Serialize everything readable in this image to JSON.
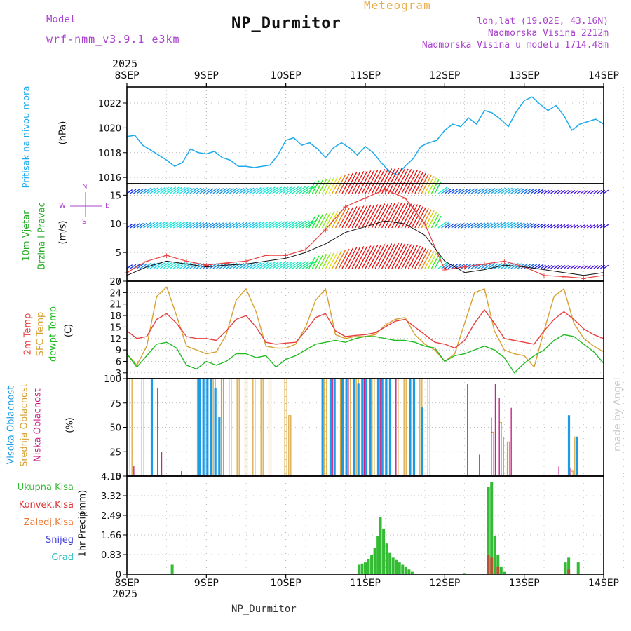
{
  "header": {
    "model_label": "Model",
    "model_name": "wrf-nmm_v3.9.1 e3km",
    "title": "NP_Durmitor",
    "meteogram_label": "Meteogram",
    "coords": "lon,lat (19.02E, 43.16N)",
    "elevation": "Nadmorska Visina 2212m",
    "model_elevation": "Nadmorska Visina u modelu 1714.48m",
    "footer_station": "NP_Durmitor",
    "credit": "made by Angel"
  },
  "time_axis": {
    "year": "2025",
    "days": [
      "8SEP",
      "9SEP",
      "10SEP",
      "11SEP",
      "12SEP",
      "13SEP",
      "14SEP"
    ]
  },
  "colors": {
    "pressure": "#1eaaee",
    "temp2m": "#e84040",
    "sfc": "#d8a030",
    "dewpt": "#22bb22",
    "high_cloud": "#1e9be6",
    "mid_cloud": "#d8a030",
    "low_cloud": "#cc2288",
    "total_precip": "#33bb33",
    "conv_precip": "#dd3333",
    "frozen_precip": "#ee7733",
    "snow": "#4040dd",
    "hail": "#22bbbb",
    "label_purple": "#9933cc"
  },
  "chart_data": [
    {
      "name": "pressure",
      "type": "line",
      "ylabel": "Pritisak na nivou mora",
      "unit": "(hPa)",
      "ylim": [
        1015.5,
        1023.3
      ],
      "yticks": [
        1016,
        1018,
        1020,
        1022
      ],
      "x_days": [
        0.0,
        0.1,
        0.2,
        0.3,
        0.4,
        0.5,
        0.6,
        0.7,
        0.8,
        0.9,
        1.0,
        1.1,
        1.2,
        1.3,
        1.4,
        1.5,
        1.6,
        1.7,
        1.8,
        1.9,
        2.0,
        2.1,
        2.2,
        2.3,
        2.4,
        2.5,
        2.6,
        2.7,
        2.8,
        2.9,
        3.0,
        3.1,
        3.2,
        3.3,
        3.4,
        3.5,
        3.6,
        3.7,
        3.8,
        3.9,
        4.0,
        4.1,
        4.2,
        4.3,
        4.4,
        4.5,
        4.6,
        4.7,
        4.8,
        4.9,
        5.0,
        5.1,
        5.2,
        5.3,
        5.4,
        5.5,
        5.6,
        5.7,
        5.8,
        5.9,
        6.0
      ],
      "values": [
        1019.3,
        1019.4,
        1018.6,
        1018.2,
        1017.8,
        1017.4,
        1016.9,
        1017.2,
        1018.3,
        1018.0,
        1017.9,
        1018.1,
        1017.6,
        1017.4,
        1016.9,
        1016.9,
        1016.8,
        1016.9,
        1017.0,
        1017.8,
        1019.0,
        1019.2,
        1018.6,
        1018.8,
        1018.3,
        1017.6,
        1018.4,
        1018.8,
        1018.4,
        1017.8,
        1018.5,
        1018.0,
        1017.2,
        1016.5,
        1016.2,
        1016.9,
        1017.5,
        1018.5,
        1018.8,
        1019.0,
        1019.8,
        1020.3,
        1020.1,
        1020.8,
        1020.3,
        1021.4,
        1021.2,
        1020.7,
        1020.1,
        1021.3,
        1022.2,
        1022.5,
        1021.9,
        1021.4,
        1021.8,
        1021.0,
        1019.8,
        1020.3,
        1020.5,
        1020.7,
        1020.3
      ]
    },
    {
      "name": "wind",
      "type": "line",
      "ylabel_1": "10m Vjetar",
      "ylabel_2": "Brzina i Pravac",
      "unit": "(m/s)",
      "compass_n": "N",
      "compass_s": "S",
      "compass_w": "W",
      "compass_e": "E",
      "ylim": [
        0,
        17
      ],
      "yticks": [
        0,
        5,
        10,
        15
      ],
      "x_days": [
        0.0,
        0.25,
        0.5,
        0.75,
        1.0,
        1.25,
        1.5,
        1.75,
        2.0,
        2.25,
        2.5,
        2.75,
        3.0,
        3.25,
        3.5,
        3.75,
        4.0,
        4.25,
        4.5,
        4.75,
        5.0,
        5.25,
        5.5,
        5.75,
        6.0
      ],
      "speed_mean": [
        1.0,
        2.5,
        3.5,
        3.0,
        2.5,
        2.8,
        3.0,
        3.5,
        4.0,
        5.0,
        6.5,
        8.5,
        9.5,
        10.5,
        10.0,
        8.0,
        3.5,
        1.5,
        2.0,
        2.8,
        2.5,
        2.0,
        1.5,
        1.0,
        1.5
      ],
      "speed_gust": [
        1.5,
        3.5,
        4.5,
        3.5,
        2.8,
        3.2,
        3.5,
        4.5,
        4.5,
        5.5,
        9.0,
        13.0,
        14.5,
        16.0,
        14.5,
        10.0,
        2.0,
        2.5,
        3.0,
        3.5,
        2.5,
        1.0,
        0.8,
        0.5,
        1.0
      ]
    },
    {
      "name": "temperature",
      "type": "line",
      "ylabel_1": "2m Temp",
      "ylabel_2": "SFC Temp",
      "ylabel_3": "dewpt Temp",
      "unit": "(C)",
      "ylim": [
        1.5,
        27
      ],
      "yticks": [
        3,
        6,
        9,
        12,
        15,
        18,
        21,
        24,
        27
      ],
      "x_days": [
        0.0,
        0.125,
        0.25,
        0.375,
        0.5,
        0.625,
        0.75,
        0.875,
        1.0,
        1.125,
        1.25,
        1.375,
        1.5,
        1.625,
        1.75,
        1.875,
        2.0,
        2.125,
        2.25,
        2.375,
        2.5,
        2.625,
        2.75,
        2.875,
        3.0,
        3.125,
        3.25,
        3.375,
        3.5,
        3.625,
        3.75,
        3.875,
        4.0,
        4.125,
        4.25,
        4.375,
        4.5,
        4.625,
        4.75,
        4.875,
        5.0,
        5.125,
        5.25,
        5.375,
        5.5,
        5.625,
        5.75,
        5.875,
        6.0
      ],
      "t2m": [
        14.0,
        12.0,
        12.5,
        17.0,
        18.5,
        16.0,
        12.5,
        12.0,
        12.0,
        11.5,
        14.0,
        17.0,
        18.0,
        15.0,
        11.0,
        10.5,
        10.8,
        11.0,
        14.0,
        17.5,
        18.5,
        14.0,
        12.5,
        12.8,
        13.0,
        13.5,
        15.0,
        16.5,
        17.0,
        15.0,
        13.0,
        11.0,
        10.5,
        9.5,
        11.5,
        16.0,
        19.5,
        16.0,
        12.0,
        11.5,
        11.0,
        10.5,
        14.0,
        17.0,
        19.0,
        17.0,
        14.5,
        13.0,
        12.0
      ],
      "sfc": [
        8.0,
        5.0,
        10.0,
        23.0,
        25.5,
        18.0,
        10.0,
        9.0,
        8.0,
        8.5,
        13.0,
        22.0,
        25.0,
        19.0,
        10.0,
        9.5,
        9.5,
        10.5,
        15.0,
        22.0,
        25.0,
        13.0,
        12.0,
        12.5,
        12.5,
        13.0,
        15.5,
        17.0,
        17.5,
        13.0,
        10.5,
        9.0,
        6.0,
        8.0,
        16.0,
        24.0,
        25.0,
        14.0,
        9.0,
        8.0,
        7.5,
        4.5,
        14.0,
        23.0,
        25.0,
        16.0,
        12.0,
        10.0,
        8.5
      ],
      "dewpt": [
        8.0,
        4.5,
        7.5,
        10.5,
        11.0,
        9.5,
        5.0,
        4.0,
        6.0,
        5.0,
        6.0,
        8.0,
        8.0,
        7.0,
        7.5,
        4.5,
        6.5,
        7.5,
        9.0,
        10.5,
        11.0,
        11.5,
        11.0,
        12.0,
        12.5,
        12.5,
        12.0,
        11.5,
        11.5,
        11.0,
        10.0,
        9.5,
        6.0,
        7.5,
        8.0,
        9.0,
        10.0,
        9.0,
        7.0,
        3.0,
        5.5,
        7.5,
        9.0,
        11.5,
        13.0,
        12.5,
        10.5,
        8.5,
        5.5
      ]
    },
    {
      "name": "clouds",
      "type": "bar",
      "ylabel_1": "Visoka Oblacnost",
      "ylabel_2": "Srednja Oblacnost",
      "ylabel_3": "Niska Oblacnost",
      "unit": "(%)",
      "ylim": [
        0,
        100
      ],
      "yticks": [
        0,
        25,
        50,
        75,
        100
      ],
      "high": [
        [
          0.3,
          100
        ],
        [
          0.9,
          100
        ],
        [
          0.95,
          100
        ],
        [
          1.0,
          100
        ],
        [
          1.05,
          100
        ],
        [
          1.1,
          90
        ],
        [
          1.15,
          60
        ],
        [
          2.45,
          100
        ],
        [
          2.55,
          100
        ],
        [
          2.6,
          100
        ],
        [
          2.7,
          100
        ],
        [
          2.75,
          100
        ],
        [
          2.85,
          100
        ],
        [
          2.9,
          95
        ],
        [
          2.95,
          100
        ],
        [
          3.0,
          100
        ],
        [
          3.05,
          100
        ],
        [
          3.15,
          100
        ],
        [
          3.2,
          100
        ],
        [
          3.25,
          100
        ],
        [
          3.3,
          100
        ],
        [
          3.55,
          100
        ],
        [
          3.6,
          100
        ],
        [
          3.7,
          70
        ],
        [
          5.55,
          62
        ],
        [
          5.65,
          40
        ]
      ],
      "mid": [
        [
          0.05,
          100
        ],
        [
          0.2,
          100
        ],
        [
          0.9,
          100
        ],
        [
          1.0,
          100
        ],
        [
          1.1,
          100
        ],
        [
          1.2,
          100
        ],
        [
          1.3,
          100
        ],
        [
          1.4,
          100
        ],
        [
          1.5,
          100
        ],
        [
          1.6,
          100
        ],
        [
          1.7,
          100
        ],
        [
          1.8,
          100
        ],
        [
          2.0,
          100
        ],
        [
          2.05,
          62
        ],
        [
          2.5,
          100
        ],
        [
          2.6,
          100
        ],
        [
          2.7,
          100
        ],
        [
          2.8,
          100
        ],
        [
          2.9,
          100
        ],
        [
          3.0,
          100
        ],
        [
          3.1,
          100
        ],
        [
          3.2,
          100
        ],
        [
          3.3,
          100
        ],
        [
          3.4,
          100
        ],
        [
          3.5,
          100
        ],
        [
          3.6,
          100
        ],
        [
          3.7,
          100
        ],
        [
          3.8,
          100
        ],
        [
          4.6,
          45
        ],
        [
          4.7,
          55
        ],
        [
          4.8,
          35
        ],
        [
          5.6,
          5
        ],
        [
          5.65,
          40
        ]
      ],
      "low": [
        [
          0.1,
          10
        ],
        [
          0.4,
          90
        ],
        [
          0.45,
          25
        ],
        [
          0.7,
          5
        ],
        [
          2.6,
          100
        ],
        [
          2.8,
          100
        ],
        [
          3.0,
          100
        ],
        [
          3.2,
          100
        ],
        [
          3.4,
          100
        ],
        [
          4.3,
          95
        ],
        [
          4.45,
          22
        ],
        [
          4.6,
          60
        ],
        [
          4.65,
          95
        ],
        [
          4.7,
          80
        ],
        [
          4.75,
          40
        ],
        [
          4.85,
          70
        ],
        [
          5.45,
          10
        ],
        [
          5.6,
          8
        ]
      ]
    },
    {
      "name": "precip",
      "type": "bar",
      "ylabel_1": "1hr Precip",
      "unit": "(mm)",
      "legend": [
        "Ukupna Kisa",
        "Konvek.Kisa",
        "Zaledj.Kisa",
        "Snijeg",
        "Grad"
      ],
      "ylim": [
        0,
        4.15
      ],
      "yticks": [
        0,
        0.83,
        1.66,
        2.49,
        3.32,
        4.15
      ],
      "ytick_labels": [
        "0",
        "0.83",
        "1.66",
        "2.49",
        "3.32",
        "4.15"
      ],
      "total": [
        [
          0.57,
          0.4
        ],
        [
          2.92,
          0.4
        ],
        [
          2.96,
          0.45
        ],
        [
          3.0,
          0.5
        ],
        [
          3.04,
          0.65
        ],
        [
          3.08,
          0.8
        ],
        [
          3.12,
          1.1
        ],
        [
          3.16,
          1.6
        ],
        [
          3.19,
          2.4
        ],
        [
          3.23,
          1.9
        ],
        [
          3.27,
          1.3
        ],
        [
          3.31,
          0.9
        ],
        [
          3.35,
          0.7
        ],
        [
          3.39,
          0.6
        ],
        [
          3.43,
          0.5
        ],
        [
          3.47,
          0.4
        ],
        [
          3.51,
          0.3
        ],
        [
          3.55,
          0.2
        ],
        [
          3.59,
          0.1
        ],
        [
          4.25,
          0.05
        ],
        [
          4.55,
          3.7
        ],
        [
          4.59,
          3.9
        ],
        [
          4.63,
          1.6
        ],
        [
          4.67,
          0.8
        ],
        [
          4.71,
          0.3
        ],
        [
          4.75,
          0.1
        ],
        [
          5.52,
          0.5
        ],
        [
          5.56,
          0.7
        ],
        [
          5.68,
          0.5
        ]
      ],
      "convective": [
        [
          4.55,
          0.8
        ],
        [
          4.59,
          0.7
        ],
        [
          4.67,
          0.3
        ],
        [
          5.56,
          0.2
        ]
      ]
    }
  ]
}
